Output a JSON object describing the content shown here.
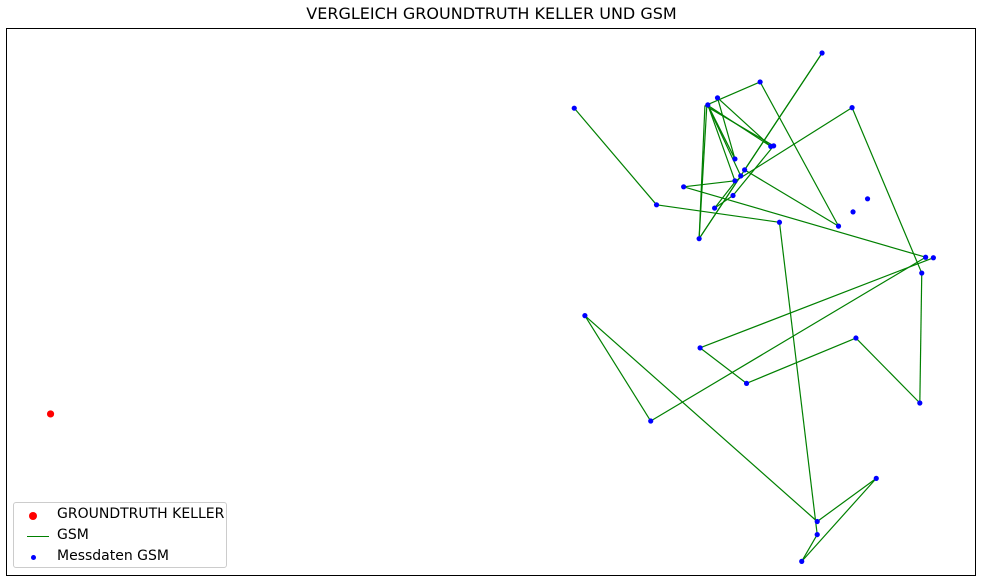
{
  "chart_data": {
    "type": "scatter",
    "title": "VERGLEICH GROUNDTRUTH KELLER UND GSM",
    "xlabel": "",
    "ylabel": "",
    "xlim": [
      0,
      100
    ],
    "ylim": [
      0,
      100
    ],
    "axes_ticks": "none",
    "grid": false,
    "legend_position": "lower-left",
    "colors": {
      "groundtruth": "#ff0000",
      "gsm_line": "#008000",
      "gsm_points": "#0000ff"
    },
    "series": [
      {
        "name": "GROUNDTRUTH KELLER",
        "kind": "scatter",
        "points": [
          [
            4.5,
            29.5
          ]
        ]
      },
      {
        "name": "GSM",
        "kind": "line",
        "points": [
          [
            58.6,
            85.5
          ],
          [
            67.1,
            67.8
          ],
          [
            79.8,
            64.6
          ],
          [
            83.7,
            7.4
          ],
          [
            82.1,
            2.5
          ],
          [
            89.8,
            17.7
          ],
          [
            83.7,
            9.8
          ],
          [
            59.7,
            47.5
          ],
          [
            66.5,
            28.2
          ],
          [
            94.9,
            58.2
          ],
          [
            69.9,
            71.1
          ],
          [
            75.2,
            72.2
          ],
          [
            72.4,
            86.1
          ],
          [
            75.2,
            76.2
          ],
          [
            73.4,
            87.4
          ],
          [
            78.9,
            78.5
          ],
          [
            72.4,
            86.0
          ],
          [
            75.8,
            73.1
          ],
          [
            71.5,
            61.6
          ],
          [
            72.3,
            86.1
          ],
          [
            77.8,
            90.3
          ],
          [
            85.9,
            63.9
          ],
          [
            76.2,
            74.2
          ],
          [
            84.2,
            95.6
          ],
          [
            71.5,
            61.6
          ],
          [
            72.1,
            86.0
          ],
          [
            79.2,
            78.6
          ],
          [
            75.0,
            69.5
          ],
          [
            73.1,
            67.2
          ],
          [
            75.3,
            72.2
          ],
          [
            87.3,
            85.6
          ],
          [
            94.5,
            55.3
          ],
          [
            94.3,
            31.5
          ],
          [
            87.7,
            43.4
          ],
          [
            76.4,
            35.1
          ],
          [
            71.6,
            41.6
          ],
          [
            95.7,
            58.1
          ]
        ]
      },
      {
        "name": "Messdaten GSM",
        "kind": "scatter",
        "points": [
          [
            58.6,
            85.5
          ],
          [
            67.1,
            67.8
          ],
          [
            79.8,
            64.6
          ],
          [
            83.7,
            7.4
          ],
          [
            82.1,
            2.5
          ],
          [
            89.8,
            17.7
          ],
          [
            83.7,
            9.8
          ],
          [
            59.7,
            47.5
          ],
          [
            66.5,
            28.2
          ],
          [
            94.9,
            58.2
          ],
          [
            69.9,
            71.1
          ],
          [
            75.2,
            72.2
          ],
          [
            72.4,
            86.1
          ],
          [
            75.2,
            76.2
          ],
          [
            73.4,
            87.4
          ],
          [
            78.9,
            78.5
          ],
          [
            75.8,
            73.1
          ],
          [
            71.5,
            61.6
          ],
          [
            77.8,
            90.3
          ],
          [
            85.9,
            63.9
          ],
          [
            76.2,
            74.2
          ],
          [
            84.2,
            95.6
          ],
          [
            75.0,
            69.5
          ],
          [
            73.1,
            67.2
          ],
          [
            79.2,
            78.6
          ],
          [
            87.3,
            85.6
          ],
          [
            87.4,
            66.5
          ],
          [
            88.9,
            68.9
          ],
          [
            94.5,
            55.3
          ],
          [
            94.3,
            31.5
          ],
          [
            87.7,
            43.4
          ],
          [
            76.4,
            35.1
          ],
          [
            71.6,
            41.6
          ],
          [
            95.7,
            58.1
          ]
        ]
      }
    ]
  }
}
